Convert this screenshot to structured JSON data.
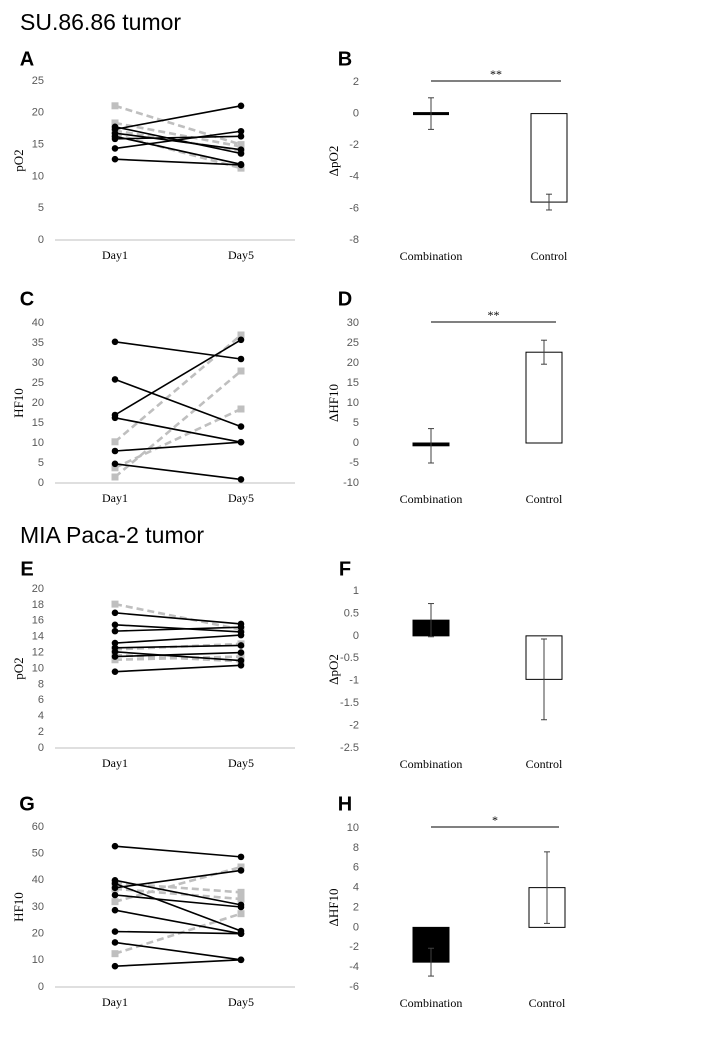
{
  "sections": [
    {
      "title": "SU.86.86 tumor"
    },
    {
      "title": "MIA Paca-2 tumor"
    }
  ],
  "colors": {
    "combination": "#000000",
    "control": "#bfbfbf",
    "control_fill": "#ffffff"
  },
  "chart_data": [
    {
      "panel": "A",
      "type": "line",
      "ylabel": "pO2",
      "categories": [
        "Day1",
        "Day5"
      ],
      "ylim": [
        0,
        25
      ],
      "yticks": [
        0,
        5,
        10,
        15,
        20,
        25
      ],
      "series": [
        {
          "group": "combination",
          "values": [
            12.7,
            11.8
          ]
        },
        {
          "group": "combination",
          "values": [
            14.4,
            17.1
          ]
        },
        {
          "group": "combination",
          "values": [
            15.9,
            16.3
          ]
        },
        {
          "group": "combination",
          "values": [
            16.8,
            14.2
          ]
        },
        {
          "group": "combination",
          "values": [
            17.4,
            21.1
          ]
        },
        {
          "group": "combination",
          "values": [
            17.8,
            13.6
          ]
        },
        {
          "group": "combination",
          "values": [
            16.3,
            11.9
          ]
        },
        {
          "group": "control",
          "values": [
            21.1,
            15.0
          ]
        },
        {
          "group": "control",
          "values": [
            18.4,
            14.7
          ]
        },
        {
          "group": "control",
          "values": [
            16.6,
            11.3
          ]
        },
        {
          "group": "control",
          "values": [
            17.2,
            14.0
          ]
        }
      ]
    },
    {
      "panel": "B",
      "type": "bar",
      "ylabel": "ΔpO2",
      "categories": [
        "Combination",
        "Control"
      ],
      "ylim": [
        -8,
        2
      ],
      "yticks": [
        -8,
        -6,
        -4,
        -2,
        0,
        2
      ],
      "values": [
        0.0,
        -5.6
      ],
      "errors": [
        1.0,
        0.5
      ],
      "fills": [
        "#000000",
        "#ffffff"
      ],
      "significance": "**"
    },
    {
      "panel": "C",
      "type": "line",
      "ylabel": "HF10",
      "categories": [
        "Day1",
        "Day5"
      ],
      "ylim": [
        0,
        40
      ],
      "yticks": [
        0,
        5,
        10,
        15,
        20,
        25,
        30,
        35,
        40
      ],
      "series": [
        {
          "group": "combination",
          "values": [
            35.3,
            31.0
          ]
        },
        {
          "group": "combination",
          "values": [
            25.9,
            14.1
          ]
        },
        {
          "group": "combination",
          "values": [
            17.0,
            35.8
          ]
        },
        {
          "group": "combination",
          "values": [
            16.3,
            10.2
          ]
        },
        {
          "group": "combination",
          "values": [
            8.0,
            10.2
          ]
        },
        {
          "group": "combination",
          "values": [
            4.8,
            0.9
          ]
        },
        {
          "group": "control",
          "values": [
            10.3,
            37.0
          ]
        },
        {
          "group": "control",
          "values": [
            1.5,
            28.0
          ]
        },
        {
          "group": "control",
          "values": [
            3.8,
            18.5
          ]
        }
      ]
    },
    {
      "panel": "D",
      "type": "bar",
      "ylabel": "ΔHF10",
      "categories": [
        "Combination",
        "Control"
      ],
      "ylim": [
        -10,
        30
      ],
      "yticks": [
        -10,
        -5,
        0,
        5,
        10,
        15,
        20,
        25,
        30
      ],
      "values": [
        -0.7,
        22.7
      ],
      "errors": [
        4.3,
        3.0
      ],
      "fills": [
        "#000000",
        "#ffffff"
      ],
      "significance": "**"
    },
    {
      "panel": "E",
      "type": "line",
      "ylabel": "pO2",
      "categories": [
        "Day1",
        "Day5"
      ],
      "ylim": [
        0,
        20
      ],
      "yticks": [
        0,
        2,
        4,
        6,
        8,
        10,
        12,
        14,
        16,
        18,
        20
      ],
      "series": [
        {
          "group": "combination",
          "values": [
            17.0,
            15.6
          ]
        },
        {
          "group": "combination",
          "values": [
            15.5,
            14.6
          ]
        },
        {
          "group": "combination",
          "values": [
            14.7,
            15.2
          ]
        },
        {
          "group": "combination",
          "values": [
            13.2,
            14.2
          ]
        },
        {
          "group": "combination",
          "values": [
            12.6,
            12.9
          ]
        },
        {
          "group": "combination",
          "values": [
            12.1,
            11.0
          ]
        },
        {
          "group": "combination",
          "values": [
            11.5,
            12.0
          ]
        },
        {
          "group": "combination",
          "values": [
            9.6,
            10.4
          ]
        },
        {
          "group": "control",
          "values": [
            18.1,
            14.9
          ]
        },
        {
          "group": "control",
          "values": [
            12.4,
            13.1
          ]
        },
        {
          "group": "control",
          "values": [
            11.7,
            10.9
          ]
        },
        {
          "group": "control",
          "values": [
            11.1,
            11.5
          ]
        }
      ]
    },
    {
      "panel": "F",
      "type": "bar",
      "ylabel": "ΔpO2",
      "categories": [
        "Combination",
        "Control"
      ],
      "ylim": [
        -2.5,
        1
      ],
      "yticks": [
        -2.5,
        -2,
        -1.5,
        -1,
        -0.5,
        0,
        0.5,
        1
      ],
      "values": [
        0.35,
        -0.97
      ],
      "errors": [
        0.37,
        0.9
      ],
      "fills": [
        "#000000",
        "#ffffff"
      ]
    },
    {
      "panel": "G",
      "type": "line",
      "ylabel": "HF10",
      "categories": [
        "Day1",
        "Day5"
      ],
      "ylim": [
        0,
        60
      ],
      "yticks": [
        0,
        10,
        20,
        30,
        40,
        50,
        60
      ],
      "series": [
        {
          "group": "combination",
          "values": [
            52.8,
            48.8
          ]
        },
        {
          "group": "combination",
          "values": [
            40.0,
            30.8
          ]
        },
        {
          "group": "combination",
          "values": [
            38.8,
            21.0
          ]
        },
        {
          "group": "combination",
          "values": [
            37.2,
            43.7
          ]
        },
        {
          "group": "combination",
          "values": [
            34.5,
            30.0
          ]
        },
        {
          "group": "combination",
          "values": [
            28.8,
            20.0
          ]
        },
        {
          "group": "combination",
          "values": [
            20.8,
            20.0
          ]
        },
        {
          "group": "combination",
          "values": [
            16.7,
            10.2
          ]
        },
        {
          "group": "combination",
          "values": [
            7.8,
            10.2
          ]
        },
        {
          "group": "control",
          "values": [
            39.0,
            35.5
          ]
        },
        {
          "group": "control",
          "values": [
            36.8,
            33.0
          ]
        },
        {
          "group": "control",
          "values": [
            32.0,
            45.0
          ]
        },
        {
          "group": "control",
          "values": [
            12.5,
            27.5
          ]
        }
      ]
    },
    {
      "panel": "H",
      "type": "bar",
      "ylabel": "ΔHF10",
      "categories": [
        "Combination",
        "Control"
      ],
      "ylim": [
        -6,
        10
      ],
      "yticks": [
        -6,
        -4,
        -2,
        0,
        2,
        4,
        6,
        8,
        10
      ],
      "values": [
        -3.5,
        4.0
      ],
      "errors": [
        1.4,
        3.6
      ],
      "fills": [
        "#000000",
        "#ffffff"
      ],
      "significance": "*"
    }
  ]
}
